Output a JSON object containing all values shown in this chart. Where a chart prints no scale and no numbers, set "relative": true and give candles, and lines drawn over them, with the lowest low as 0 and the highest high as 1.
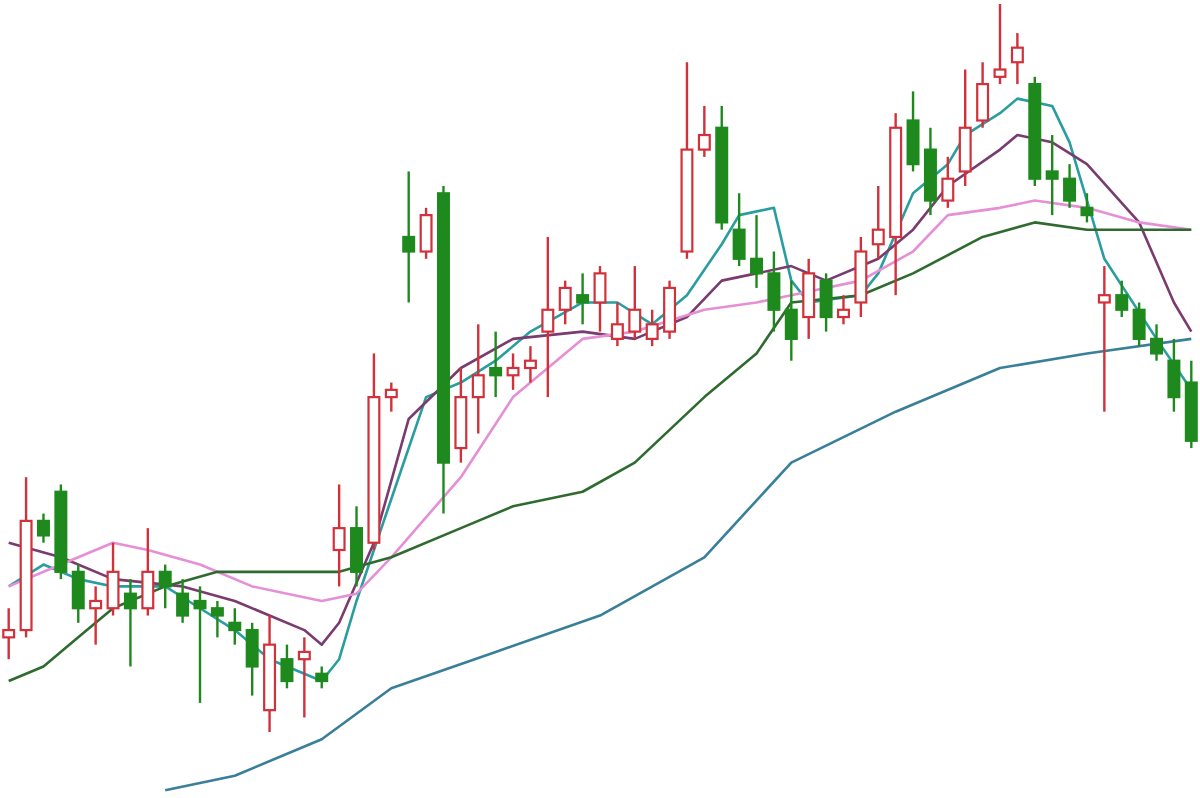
{
  "chart_data": {
    "type": "candlestick",
    "relative": true,
    "categories": [
      null,
      null,
      null,
      null,
      null,
      null,
      null,
      null,
      null,
      null,
      null,
      null,
      null,
      null,
      null,
      null,
      null,
      null,
      null,
      null,
      null,
      null,
      null,
      null,
      null,
      null,
      null,
      null,
      null,
      null,
      null,
      null,
      null,
      null,
      null,
      null,
      null,
      null,
      null,
      null,
      null,
      null,
      null,
      null,
      null,
      null,
      null,
      null,
      null,
      null,
      null,
      null,
      null,
      null,
      null,
      null,
      null,
      null,
      null,
      null,
      null,
      null,
      null,
      null,
      null,
      null,
      null,
      null,
      null
    ],
    "ohlc": [
      [
        0.13,
        0.17,
        0.1,
        0.14
      ],
      [
        0.14,
        0.35,
        0.13,
        0.29
      ],
      [
        0.29,
        0.3,
        0.26,
        0.27
      ],
      [
        0.33,
        0.34,
        0.21,
        0.22
      ],
      [
        0.22,
        0.23,
        0.15,
        0.17
      ],
      [
        0.17,
        0.2,
        0.12,
        0.18
      ],
      [
        0.17,
        0.26,
        0.16,
        0.22
      ],
      [
        0.19,
        0.21,
        0.09,
        0.17
      ],
      [
        0.17,
        0.28,
        0.16,
        0.22
      ],
      [
        0.22,
        0.23,
        0.17,
        0.2
      ],
      [
        0.19,
        0.21,
        0.15,
        0.16
      ],
      [
        0.18,
        0.2,
        0.04,
        0.17
      ],
      [
        0.17,
        0.18,
        0.13,
        0.16
      ],
      [
        0.15,
        0.17,
        0.12,
        0.14
      ],
      [
        0.14,
        0.15,
        0.05,
        0.09
      ],
      [
        0.03,
        0.16,
        0,
        0.12
      ],
      [
        0.1,
        0.12,
        0.06,
        0.07
      ],
      [
        0.1,
        0.13,
        0.02,
        0.11
      ],
      [
        0.08,
        0.09,
        0.06,
        0.07
      ],
      [
        0.25,
        0.34,
        0.2,
        0.28
      ],
      [
        0.28,
        0.31,
        0.2,
        0.22
      ],
      [
        0.26,
        0.52,
        0.25,
        0.46
      ],
      [
        0.46,
        0.48,
        0.44,
        0.47
      ],
      [
        0.68,
        0.77,
        0.59,
        0.66
      ],
      [
        0.66,
        0.72,
        0.65,
        0.71
      ],
      [
        0.74,
        0.75,
        0.3,
        0.37
      ],
      [
        0.39,
        0.5,
        0.37,
        0.46
      ],
      [
        0.46,
        0.56,
        0.41,
        0.49
      ],
      [
        0.5,
        0.55,
        0.46,
        0.49
      ],
      [
        0.49,
        0.52,
        0.47,
        0.5
      ],
      [
        0.5,
        0.53,
        0.48,
        0.51
      ],
      [
        0.55,
        0.68,
        0.46,
        0.58
      ],
      [
        0.58,
        0.62,
        0.56,
        0.61
      ],
      [
        0.6,
        0.63,
        0.56,
        0.59
      ],
      [
        0.59,
        0.64,
        0.55,
        0.63
      ],
      [
        0.54,
        0.59,
        0.53,
        0.56
      ],
      [
        0.55,
        0.64,
        0.54,
        0.58
      ],
      [
        0.54,
        0.58,
        0.53,
        0.56
      ],
      [
        0.55,
        0.62,
        0.54,
        0.61
      ],
      [
        0.66,
        0.92,
        0.65,
        0.8
      ],
      [
        0.8,
        0.86,
        0.79,
        0.82
      ],
      [
        0.83,
        0.86,
        0.69,
        0.7
      ],
      [
        0.69,
        0.74,
        0.64,
        0.65
      ],
      [
        0.65,
        0.71,
        0.61,
        0.63
      ],
      [
        0.63,
        0.66,
        0.55,
        0.58
      ],
      [
        0.58,
        0.62,
        0.51,
        0.54
      ],
      [
        0.57,
        0.65,
        0.54,
        0.63
      ],
      [
        0.62,
        0.63,
        0.55,
        0.57
      ],
      [
        0.57,
        0.6,
        0.56,
        0.58
      ],
      [
        0.59,
        0.68,
        0.57,
        0.66
      ],
      [
        0.67,
        0.75,
        0.65,
        0.69
      ],
      [
        0.68,
        0.85,
        0.6,
        0.83
      ],
      [
        0.84,
        0.88,
        0.77,
        0.78
      ],
      [
        0.8,
        0.83,
        0.71,
        0.73
      ],
      [
        0.73,
        0.79,
        0.72,
        0.76
      ],
      [
        0.77,
        0.91,
        0.75,
        0.83
      ],
      [
        0.84,
        0.92,
        0.83,
        0.89
      ],
      [
        0.9,
        1,
        0.89,
        0.91
      ],
      [
        0.92,
        0.96,
        0.89,
        0.94
      ],
      [
        0.89,
        0.9,
        0.75,
        0.76
      ],
      [
        0.77,
        0.82,
        0.71,
        0.76
      ],
      [
        0.76,
        0.78,
        0.72,
        0.73
      ],
      [
        0.72,
        0.74,
        0.7,
        0.71
      ],
      [
        0.59,
        0.64,
        0.44,
        0.6
      ],
      [
        0.6,
        0.62,
        0.57,
        0.58
      ],
      [
        0.58,
        0.59,
        0.53,
        0.54
      ],
      [
        0.54,
        0.56,
        0.51,
        0.52
      ],
      [
        0.51,
        0.54,
        0.44,
        0.46
      ],
      [
        0.48,
        0.51,
        0.39,
        0.4
      ]
    ],
    "colors": [
      "#d0313a",
      "#d0313a",
      "#1e8a1e",
      "#1e8a1e",
      "#1e8a1e",
      "#d0313a",
      "#d0313a",
      "#1e8a1e",
      "#d0313a",
      "#1e8a1e",
      "#1e8a1e",
      "#1e8a1e",
      "#1e8a1e",
      "#1e8a1e",
      "#1e8a1e",
      "#d0313a",
      "#1e8a1e",
      "#d0313a",
      "#1e8a1e",
      "#d0313a",
      "#1e8a1e",
      "#d0313a",
      "#d0313a",
      "#1e8a1e",
      "#d0313a",
      "#1e8a1e",
      "#d0313a",
      "#d0313a",
      "#1e8a1e",
      "#d0313a",
      "#d0313a",
      "#d0313a",
      "#d0313a",
      "#1e8a1e",
      "#d0313a",
      "#d0313a",
      "#d0313a",
      "#d0313a",
      "#d0313a",
      "#d0313a",
      "#d0313a",
      "#1e8a1e",
      "#1e8a1e",
      "#1e8a1e",
      "#1e8a1e",
      "#1e8a1e",
      "#d0313a",
      "#1e8a1e",
      "#d0313a",
      "#d0313a",
      "#d0313a",
      "#d0313a",
      "#1e8a1e",
      "#1e8a1e",
      "#d0313a",
      "#d0313a",
      "#d0313a",
      "#d0313a",
      "#d0313a",
      "#1e8a1e",
      "#1e8a1e",
      "#1e8a1e",
      "#1e8a1e",
      "#d0313a",
      "#1e8a1e",
      "#1e8a1e",
      "#1e8a1e",
      "#1e8a1e",
      "#1e8a1e"
    ],
    "series": [
      {
        "type": "line",
        "color": "#2a9da0",
        "values": [
          0.2,
          null,
          0.23,
          null,
          0.21,
          null,
          0.2,
          null,
          null,
          0.2,
          null,
          0.17,
          null,
          0.14,
          null,
          0.1,
          null,
          null,
          0.07,
          0.1,
          0.18,
          null,
          0.32,
          null,
          0.46,
          null,
          0.48,
          null,
          0.51,
          null,
          0.55,
          null,
          null,
          0.59,
          null,
          0.59,
          null,
          0.56,
          null,
          0.6,
          null,
          0.67,
          0.71,
          null,
          0.72,
          0.62,
          0.59,
          null,
          null,
          0.6,
          0.63,
          null,
          0.74,
          null,
          0.78,
          0.82,
          null,
          0.85,
          0.87,
          null,
          0.86,
          0.81,
          null,
          0.65,
          null,
          null,
          0.54,
          null,
          0.47
        ]
      },
      {
        "type": "line",
        "color": "#7a3b6f",
        "values": [
          0.26,
          null,
          null,
          0.24,
          null,
          null,
          0.21,
          null,
          null,
          null,
          0.2,
          null,
          null,
          0.18,
          null,
          null,
          null,
          0.14,
          0.12,
          0.15,
          null,
          0.26,
          null,
          0.43,
          null,
          null,
          0.5,
          null,
          null,
          0.54,
          null,
          null,
          null,
          0.55,
          null,
          null,
          0.54,
          null,
          null,
          0.57,
          null,
          0.62,
          null,
          0.63,
          null,
          0.64,
          null,
          0.62,
          null,
          null,
          0.65,
          null,
          0.69,
          null,
          0.75,
          null,
          null,
          0.8,
          0.82,
          null,
          0.81,
          null,
          0.78,
          null,
          null,
          0.7,
          null,
          0.59,
          0.55
        ]
      },
      {
        "type": "line",
        "color": "#e58fd6",
        "values": [
          0.2,
          null,
          null,
          0.23,
          null,
          null,
          0.26,
          null,
          0.25,
          null,
          null,
          0.23,
          null,
          null,
          0.2,
          null,
          null,
          null,
          0.18,
          null,
          0.19,
          null,
          0.24,
          null,
          null,
          null,
          0.35,
          null,
          null,
          0.46,
          null,
          null,
          null,
          0.54,
          null,
          null,
          0.55,
          null,
          null,
          null,
          0.58,
          null,
          null,
          0.59,
          null,
          0.6,
          null,
          null,
          null,
          0.62,
          null,
          null,
          0.66,
          null,
          0.71,
          null,
          null,
          0.72,
          null,
          0.73,
          null,
          null,
          0.72,
          null,
          null,
          0.7,
          null,
          null,
          0.69
        ]
      },
      {
        "type": "line",
        "color": "#2f6b2f",
        "values": [
          0.07,
          null,
          0.09,
          null,
          0.13,
          null,
          0.17,
          null,
          null,
          0.2,
          null,
          null,
          0.22,
          null,
          null,
          null,
          0.22,
          null,
          null,
          0.22,
          null,
          null,
          0.24,
          null,
          null,
          null,
          0.28,
          null,
          null,
          0.31,
          null,
          null,
          null,
          0.33,
          null,
          null,
          0.37,
          null,
          null,
          null,
          0.46,
          null,
          null,
          0.52,
          null,
          0.59,
          null,
          null,
          null,
          0.6,
          null,
          null,
          0.63,
          null,
          null,
          null,
          0.68,
          null,
          null,
          0.7,
          null,
          null,
          0.69,
          null,
          null,
          null,
          0.69,
          null,
          0.69
        ]
      },
      {
        "type": "line",
        "color": "#3a7f9a",
        "values": [
          null,
          null,
          null,
          null,
          null,
          null,
          null,
          null,
          null,
          -0.08,
          null,
          null,
          null,
          -0.06,
          null,
          null,
          null,
          null,
          -0.01,
          null,
          null,
          null,
          0.06,
          null,
          null,
          null,
          null,
          null,
          0.11,
          null,
          null,
          null,
          null,
          null,
          0.16,
          null,
          null,
          null,
          null,
          null,
          0.24,
          null,
          null,
          null,
          null,
          0.37,
          null,
          null,
          null,
          null,
          null,
          0.44,
          null,
          null,
          null,
          null,
          null,
          0.5,
          null,
          null,
          null,
          null,
          0.52,
          null,
          null,
          null,
          null,
          null,
          0.54
        ]
      }
    ]
  }
}
